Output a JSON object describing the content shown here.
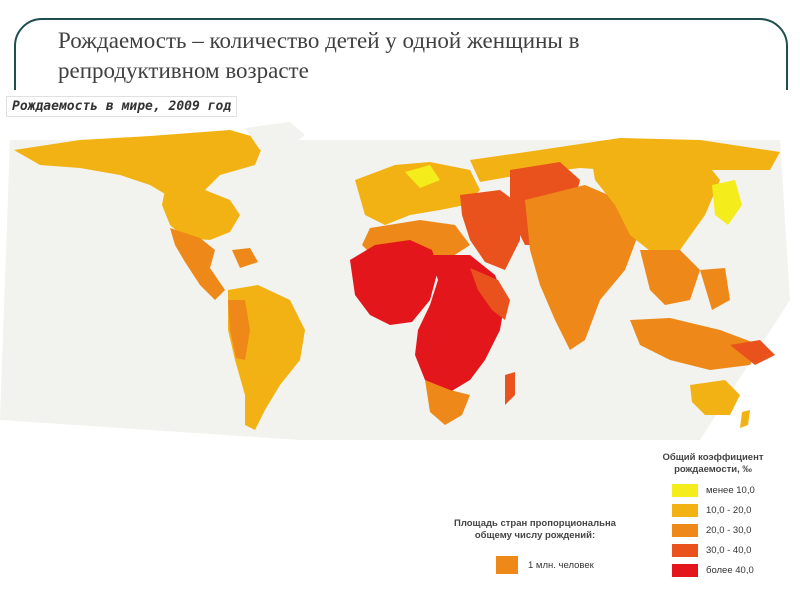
{
  "slide": {
    "title": "Рождаемость – количество детей у одной женщины в репродуктивном возрасте"
  },
  "map": {
    "header": "Рождаемость в мире, 2009 год"
  },
  "legend": {
    "title": "Общий коэффициент рождаемости, ‰",
    "items": [
      {
        "label": "менее 10,0",
        "color": "#f5ec1b"
      },
      {
        "label": "10,0 - 20,0",
        "color": "#f3b213"
      },
      {
        "label": "20,0 - 30,0",
        "color": "#ee8818"
      },
      {
        "label": "30,0 - 40,0",
        "color": "#e9521c"
      },
      {
        "label": "более 40,0",
        "color": "#e3161b"
      }
    ]
  },
  "area_note": {
    "text": "Площадь стран пропорциональна общему числу рождений:",
    "unit_label": "1 млн. человек",
    "unit_color": "#ee8818"
  }
}
